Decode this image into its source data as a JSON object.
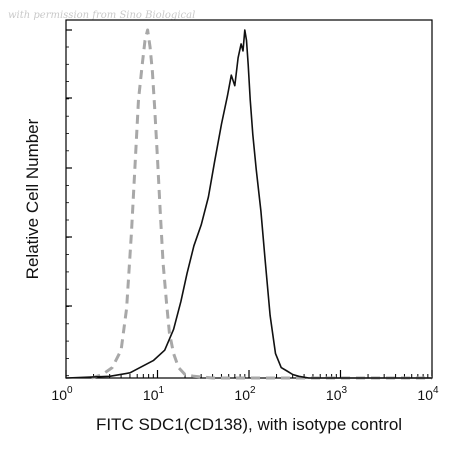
{
  "watermark": "with permission from Sino Biological",
  "chart_data": {
    "type": "line",
    "title": "",
    "xlabel": "FITC SDC1(CD138), with isotype control",
    "ylabel": "Relative Cell Number",
    "xscale": "log",
    "xlim": [
      1,
      10000
    ],
    "ylim": [
      0,
      100
    ],
    "x_ticks": [
      {
        "base": "10",
        "exp": "0",
        "value": 1
      },
      {
        "base": "10",
        "exp": "1",
        "value": 10
      },
      {
        "base": "10",
        "exp": "2",
        "value": 100
      },
      {
        "base": "10",
        "exp": "3",
        "value": 1000
      },
      {
        "base": "10",
        "exp": "4",
        "value": 10000
      }
    ],
    "y_ticks_labeled": false,
    "grid": false,
    "series": [
      {
        "style": "dashed",
        "color": "#a8a8a8",
        "x": [
          1.9,
          2.5,
          3.2,
          4.0,
          4.6,
          5.2,
          5.7,
          6.2,
          6.8,
          7.3,
          7.8,
          8.3,
          8.8,
          9.3,
          10.0,
          10.7,
          11.5,
          12.5,
          13.5,
          15.0,
          17.0,
          20.0,
          25.0,
          40.0,
          100.0,
          300.0,
          10000.0
        ],
        "y": [
          0,
          1,
          3,
          8,
          20,
          42,
          62,
          80,
          90,
          97,
          100,
          95,
          88,
          78,
          63,
          48,
          33,
          22,
          13,
          7,
          3,
          1,
          0.5,
          0,
          0,
          0,
          0
        ]
      },
      {
        "style": "solid",
        "color": "#111111",
        "x": [
          1.0,
          3.0,
          5.0,
          7.0,
          9.0,
          12.0,
          15.0,
          18.0,
          21.0,
          25.0,
          30.0,
          36.0,
          42.0,
          50.0,
          58.0,
          64.0,
          70.0,
          76.0,
          82.0,
          86.0,
          90.0,
          94.0,
          98.0,
          103.0,
          110.0,
          120.0,
          135.0,
          150.0,
          170.0,
          195.0,
          225.0,
          260.0,
          300.0,
          350.0,
          450.0,
          10000.0
        ],
        "y": [
          0,
          0.5,
          1.5,
          3.5,
          5,
          8,
          14,
          22,
          30,
          38,
          44,
          52,
          62,
          73,
          81,
          87,
          84,
          92,
          96,
          94,
          100,
          97,
          90,
          80,
          70,
          60,
          48,
          34,
          18,
          7,
          3,
          2,
          1,
          0.5,
          0,
          0
        ]
      }
    ]
  }
}
